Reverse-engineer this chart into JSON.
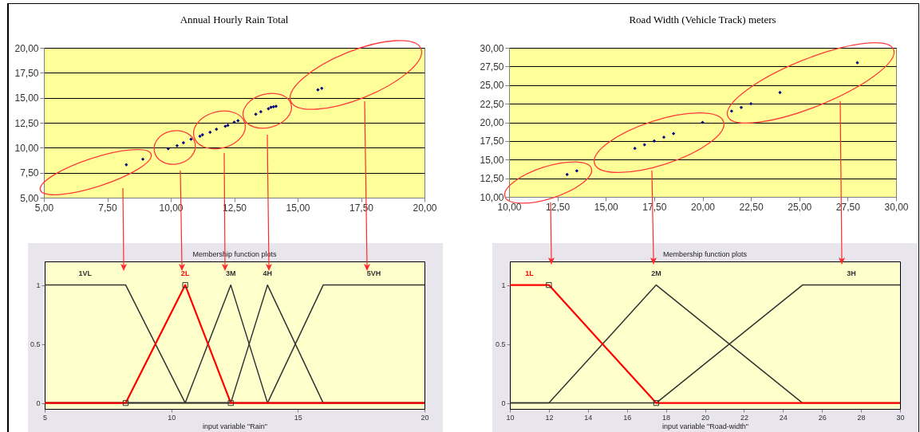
{
  "chart_data": [
    {
      "type": "scatter",
      "title": "Annual Hourly Rain Total",
      "marker": "diamond",
      "grid": "y",
      "xlim": [
        5,
        20
      ],
      "ylim": [
        5,
        20
      ],
      "xticks": [
        {
          "value": 5,
          "label": "5,00"
        },
        {
          "value": 7.5,
          "label": "7,50"
        },
        {
          "value": 10,
          "label": "10,00"
        },
        {
          "value": 12.5,
          "label": "12,50"
        },
        {
          "value": 15,
          "label": "15,00"
        },
        {
          "value": 17.5,
          "label": "17,50"
        },
        {
          "value": 20,
          "label": "20,00"
        }
      ],
      "yticks": [
        {
          "value": 5,
          "label": "5,00"
        },
        {
          "value": 7.5,
          "label": "7,50"
        },
        {
          "value": 10,
          "label": "10,00"
        },
        {
          "value": 12.5,
          "label": "12,50"
        },
        {
          "value": 15,
          "label": "15,00"
        },
        {
          "value": 17.5,
          "label": "17,50"
        },
        {
          "value": 20,
          "label": "20,00"
        }
      ],
      "color": "#000080",
      "x": [
        8.25,
        8.9,
        9.9,
        10.25,
        10.5,
        10.8,
        11.15,
        11.25,
        11.55,
        11.8,
        12.15,
        12.25,
        12.5,
        12.65,
        13.35,
        13.55,
        13.85,
        13.95,
        14.05,
        14.15,
        15.8,
        15.95
      ],
      "values": [
        8.3,
        8.85,
        9.9,
        10.2,
        10.5,
        10.85,
        11.15,
        11.3,
        11.55,
        11.85,
        12.15,
        12.25,
        12.55,
        12.7,
        13.35,
        13.6,
        13.9,
        14.05,
        14.1,
        14.15,
        15.8,
        15.95
      ]
    },
    {
      "type": "scatter",
      "title": "Road Width (Vehicle Track) meters",
      "marker": "diamond",
      "grid": "y",
      "xlim": [
        10,
        30
      ],
      "ylim": [
        10,
        30
      ],
      "xticks": [
        {
          "value": 10,
          "label": "10,00"
        },
        {
          "value": 12.5,
          "label": "12,50"
        },
        {
          "value": 15,
          "label": "15,00"
        },
        {
          "value": 17.5,
          "label": "17,50"
        },
        {
          "value": 20,
          "label": "20,00"
        },
        {
          "value": 22.5,
          "label": "22,50"
        },
        {
          "value": 25,
          "label": "25,00"
        },
        {
          "value": 27.5,
          "label": "27,50"
        },
        {
          "value": 30,
          "label": "30,00"
        }
      ],
      "yticks": [
        {
          "value": 10,
          "label": "10,00"
        },
        {
          "value": 12.5,
          "label": "12,50"
        },
        {
          "value": 15,
          "label": "15,00"
        },
        {
          "value": 17.5,
          "label": "17,50"
        },
        {
          "value": 20,
          "label": "20,00"
        },
        {
          "value": 22.5,
          "label": "22,50"
        },
        {
          "value": 25,
          "label": "25,00"
        },
        {
          "value": 27.5,
          "label": "27,50"
        },
        {
          "value": 30,
          "label": "30,00"
        }
      ],
      "color": "#000080",
      "x": [
        13,
        13.5,
        16.5,
        17,
        17.5,
        18,
        18.5,
        20,
        21.5,
        22,
        22.5,
        24,
        28
      ],
      "values": [
        13,
        13.5,
        16.5,
        17,
        17.5,
        18,
        18.5,
        20,
        21.5,
        22,
        22.5,
        24,
        28
      ]
    },
    {
      "type": "line",
      "title": "Membership function plots",
      "xlabel": "input variable \"Rain\"",
      "xlim": [
        5,
        20
      ],
      "ylim": [
        -0.05,
        1.2
      ],
      "xticks": [
        5,
        10,
        15,
        20
      ],
      "yticks": [
        0,
        0.5,
        1
      ],
      "series": [
        {
          "name": "1VL",
          "color": "#333333",
          "x": [
            5,
            8.2,
            10.55,
            20
          ],
          "values": [
            1,
            1,
            0,
            0
          ]
        },
        {
          "name": "2L",
          "color": "#ff0000",
          "x": [
            5,
            8.2,
            10.55,
            12.35,
            20
          ],
          "values": [
            0,
            0,
            1,
            0,
            0
          ]
        },
        {
          "name": "3M",
          "color": "#333333",
          "x": [
            5,
            10.55,
            12.35,
            13.8,
            20
          ],
          "values": [
            0,
            0,
            1,
            0,
            0
          ]
        },
        {
          "name": "4H",
          "color": "#333333",
          "x": [
            5,
            12.35,
            13.8,
            16,
            20
          ],
          "values": [
            0,
            0,
            1,
            0,
            0
          ]
        },
        {
          "name": "5VH",
          "color": "#333333",
          "x": [
            5,
            13.8,
            16,
            20
          ],
          "values": [
            0,
            0,
            1,
            1
          ]
        },
        {
          "type": "scatter",
          "marker": "square",
          "color": "#333333",
          "x": [
            8.2,
            10.55,
            12.35
          ],
          "values": [
            0,
            1,
            0
          ]
        }
      ]
    },
    {
      "type": "line",
      "title": "Membership function plots",
      "xlabel": "input variable \"Road-width\"",
      "xlim": [
        10,
        30
      ],
      "ylim": [
        -0.05,
        1.2
      ],
      "xticks": [
        10,
        12,
        14,
        16,
        18,
        20,
        22,
        24,
        26,
        28,
        30
      ],
      "yticks": [
        0,
        0.5,
        1
      ],
      "series": [
        {
          "name": "1L",
          "color": "#ff0000",
          "x": [
            10,
            12,
            17.5,
            30
          ],
          "values": [
            1,
            1,
            0,
            0
          ]
        },
        {
          "name": "2M",
          "color": "#333333",
          "x": [
            10,
            12,
            17.5,
            25,
            30
          ],
          "values": [
            0,
            0,
            1,
            0,
            0
          ]
        },
        {
          "name": "3H",
          "color": "#333333",
          "x": [
            10,
            17.5,
            25,
            30
          ],
          "values": [
            0,
            0,
            1,
            1
          ]
        },
        {
          "type": "scatter",
          "marker": "square",
          "color": "#333333",
          "x": [
            12,
            17.5
          ],
          "values": [
            1,
            0
          ]
        }
      ]
    }
  ]
}
